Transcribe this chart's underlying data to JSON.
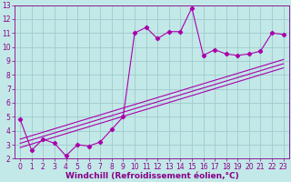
{
  "xlabel": "Windchill (Refroidissement éolien,°C)",
  "bg_color": "#c2e8e8",
  "grid_color": "#a0cccc",
  "line_color": "#aa00aa",
  "spine_color": "#880088",
  "xlim": [
    -0.5,
    23.5
  ],
  "ylim": [
    2,
    13
  ],
  "xticks": [
    0,
    1,
    2,
    3,
    4,
    5,
    6,
    7,
    8,
    9,
    10,
    11,
    12,
    13,
    14,
    15,
    16,
    17,
    18,
    19,
    20,
    21,
    22,
    23
  ],
  "yticks": [
    2,
    3,
    4,
    5,
    6,
    7,
    8,
    9,
    10,
    11,
    12,
    13
  ],
  "data_x": [
    0,
    1,
    2,
    3,
    4,
    5,
    6,
    7,
    8,
    9,
    10,
    11,
    12,
    13,
    14,
    15,
    16,
    17,
    18,
    19,
    20,
    21,
    22,
    23
  ],
  "data_y": [
    4.8,
    2.6,
    3.4,
    3.1,
    2.2,
    3.0,
    2.9,
    3.2,
    4.1,
    5.0,
    11.0,
    11.4,
    10.6,
    11.1,
    11.1,
    12.8,
    9.4,
    9.8,
    9.5,
    9.4,
    9.5,
    9.7,
    11.0,
    10.9
  ],
  "reg_lines": [
    {
      "x0": 0,
      "y0": 2.8,
      "x1": 23,
      "y1": 8.5
    },
    {
      "x0": 0,
      "y0": 3.1,
      "x1": 23,
      "y1": 8.8
    },
    {
      "x0": 0,
      "y0": 3.4,
      "x1": 23,
      "y1": 9.1
    }
  ],
  "tick_fontsize": 5.5,
  "xlabel_fontsize": 6.5,
  "marker": "D",
  "marker_size": 2.2,
  "line_width": 0.8
}
